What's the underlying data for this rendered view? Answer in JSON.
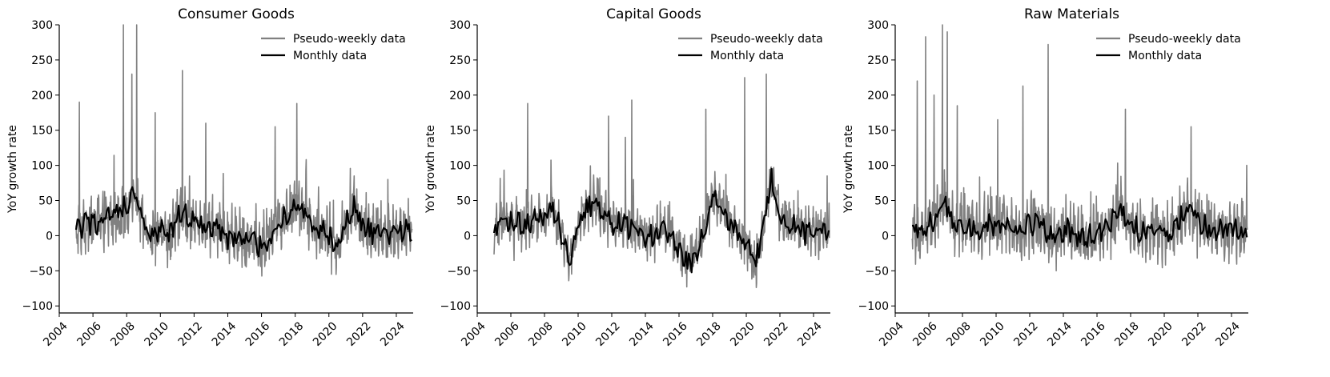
{
  "chart_data": [
    {
      "type": "line",
      "title": "Consumer Goods",
      "xlabel": "",
      "ylabel": "YoY growth rate",
      "xlim": [
        2004,
        2025
      ],
      "ylim": [
        -110,
        300
      ],
      "xticks": [
        2004,
        2006,
        2008,
        2010,
        2012,
        2014,
        2016,
        2018,
        2020,
        2022,
        2024
      ],
      "xtick_labels": [
        "2004",
        "2006",
        "2008",
        "2010",
        "2012",
        "2014",
        "2016",
        "2018",
        "2020",
        "2022",
        "2024"
      ],
      "yticks": [
        -100,
        -50,
        0,
        50,
        100,
        150,
        200,
        250,
        300
      ],
      "ytick_labels": [
        "−100",
        "−50",
        "0",
        "50",
        "100",
        "150",
        "200",
        "250",
        "300"
      ],
      "legend": [
        "Pseudo-weekly data",
        "Monthly data"
      ],
      "legend_position": "top-right",
      "monthly_anchors": {
        "x": [
          2005.0,
          2005.5,
          2006.0,
          2006.5,
          2007.0,
          2007.5,
          2008.0,
          2008.5,
          2009.0,
          2009.5,
          2010.0,
          2010.5,
          2011.0,
          2011.5,
          2012.0,
          2012.5,
          2013.0,
          2013.5,
          2014.0,
          2014.5,
          2015.0,
          2015.5,
          2016.0,
          2016.5,
          2017.0,
          2017.5,
          2018.0,
          2018.5,
          2019.0,
          2019.5,
          2020.0,
          2020.5,
          2021.0,
          2021.5,
          2022.0,
          2022.5,
          2023.0,
          2023.5,
          2024.0,
          2024.5,
          2024.9
        ],
        "y": [
          5,
          15,
          20,
          15,
          25,
          30,
          40,
          55,
          20,
          0,
          5,
          -5,
          25,
          30,
          20,
          10,
          15,
          10,
          -5,
          0,
          -10,
          -5,
          -15,
          -5,
          20,
          25,
          45,
          35,
          10,
          5,
          -5,
          -15,
          15,
          40,
          10,
          5,
          5,
          0,
          10,
          5,
          10
        ]
      },
      "weekly_spread": 28,
      "spikes": [
        [
          2005.2,
          190
        ],
        [
          2007.8,
          300
        ],
        [
          2008.6,
          300
        ],
        [
          2008.3,
          230
        ],
        [
          2011.3,
          235
        ],
        [
          2009.7,
          175
        ],
        [
          2012.7,
          160
        ],
        [
          2018.1,
          188
        ],
        [
          2016.8,
          155
        ],
        [
          2021.5,
          85
        ],
        [
          2023.5,
          80
        ]
      ],
      "series": [
        {
          "name": "Pseudo-weekly data",
          "color": "#808080"
        },
        {
          "name": "Monthly data",
          "color": "#000000"
        }
      ]
    },
    {
      "type": "line",
      "title": "Capital Goods",
      "xlabel": "",
      "ylabel": "YoY growth rate",
      "xlim": [
        2004,
        2025
      ],
      "ylim": [
        -110,
        300
      ],
      "xticks": [
        2004,
        2006,
        2008,
        2010,
        2012,
        2014,
        2016,
        2018,
        2020,
        2022,
        2024
      ],
      "xtick_labels": [
        "2004",
        "2006",
        "2008",
        "2010",
        "2012",
        "2014",
        "2016",
        "2018",
        "2020",
        "2022",
        "2024"
      ],
      "yticks": [
        -100,
        -50,
        0,
        50,
        100,
        150,
        200,
        250,
        300
      ],
      "ytick_labels": [
        "−100",
        "−50",
        "0",
        "50",
        "100",
        "150",
        "200",
        "250",
        "300"
      ],
      "legend": [
        "Pseudo-weekly data",
        "Monthly data"
      ],
      "legend_position": "top-right",
      "monthly_anchors": {
        "x": [
          2005.0,
          2005.5,
          2006.0,
          2006.5,
          2007.0,
          2007.5,
          2008.0,
          2008.5,
          2009.0,
          2009.5,
          2010.0,
          2010.5,
          2011.0,
          2011.5,
          2012.0,
          2012.5,
          2013.0,
          2013.5,
          2014.0,
          2014.5,
          2015.0,
          2015.5,
          2016.0,
          2016.5,
          2017.0,
          2017.5,
          2018.0,
          2018.5,
          2019.0,
          2019.5,
          2020.0,
          2020.5,
          2021.0,
          2021.5,
          2022.0,
          2022.5,
          2023.0,
          2023.5,
          2024.0,
          2024.5,
          2024.9
        ],
        "y": [
          0,
          25,
          20,
          15,
          15,
          20,
          25,
          40,
          5,
          -40,
          10,
          40,
          50,
          30,
          15,
          20,
          10,
          10,
          0,
          5,
          10,
          5,
          -25,
          -40,
          -30,
          10,
          60,
          40,
          20,
          5,
          -10,
          -45,
          10,
          85,
          25,
          20,
          10,
          5,
          10,
          5,
          5
        ],
        "unused": null
      },
      "weekly_spread": 24,
      "spikes": [
        [
          2007.0,
          188
        ],
        [
          2013.2,
          193
        ],
        [
          2011.8,
          170
        ],
        [
          2017.6,
          180
        ],
        [
          2019.9,
          225
        ],
        [
          2021.2,
          230
        ],
        [
          2024.8,
          85
        ],
        [
          2012.8,
          140
        ]
      ],
      "series": [
        {
          "name": "Pseudo-weekly data",
          "color": "#808080"
        },
        {
          "name": "Monthly data",
          "color": "#000000"
        }
      ]
    },
    {
      "type": "line",
      "title": "Raw Materials",
      "xlabel": "",
      "ylabel": "YoY growth rate",
      "xlim": [
        2004,
        2025
      ],
      "ylim": [
        -110,
        300
      ],
      "xticks": [
        2004,
        2006,
        2008,
        2010,
        2012,
        2014,
        2016,
        2018,
        2020,
        2022,
        2024
      ],
      "xtick_labels": [
        "2004",
        "2006",
        "2008",
        "2010",
        "2012",
        "2014",
        "2016",
        "2018",
        "2020",
        "2022",
        "2024"
      ],
      "yticks": [
        -100,
        -50,
        0,
        50,
        100,
        150,
        200,
        250,
        300
      ],
      "ytick_labels": [
        "−100",
        "−50",
        "0",
        "50",
        "100",
        "150",
        "200",
        "250",
        "300"
      ],
      "legend": [
        "Pseudo-weekly data",
        "Monthly data"
      ],
      "legend_position": "top-right",
      "monthly_anchors": {
        "x": [
          2005.0,
          2005.5,
          2006.0,
          2006.5,
          2007.0,
          2007.5,
          2008.0,
          2008.5,
          2009.0,
          2009.5,
          2010.0,
          2010.5,
          2011.0,
          2011.5,
          2012.0,
          2012.5,
          2013.0,
          2013.5,
          2014.0,
          2014.5,
          2015.0,
          2015.5,
          2016.0,
          2016.5,
          2017.0,
          2017.5,
          2018.0,
          2018.5,
          2019.0,
          2019.5,
          2020.0,
          2020.5,
          2021.0,
          2021.5,
          2022.0,
          2022.5,
          2023.0,
          2023.5,
          2024.0,
          2024.5,
          2024.9
        ],
        "y": [
          10,
          0,
          20,
          30,
          50,
          10,
          15,
          10,
          5,
          20,
          10,
          15,
          10,
          5,
          20,
          15,
          5,
          0,
          10,
          5,
          0,
          -5,
          5,
          10,
          20,
          40,
          15,
          10,
          5,
          10,
          5,
          10,
          25,
          40,
          20,
          10,
          5,
          5,
          10,
          5,
          5
        ]
      },
      "weekly_spread": 30,
      "spikes": [
        [
          2005.3,
          220
        ],
        [
          2005.8,
          283
        ],
        [
          2006.8,
          300
        ],
        [
          2007.1,
          290
        ],
        [
          2007.7,
          185
        ],
        [
          2006.3,
          200
        ],
        [
          2011.6,
          213
        ],
        [
          2013.1,
          272
        ],
        [
          2010.1,
          165
        ],
        [
          2017.7,
          180
        ],
        [
          2021.6,
          155
        ],
        [
          2024.9,
          100
        ]
      ],
      "series": [
        {
          "name": "Pseudo-weekly data",
          "color": "#808080"
        },
        {
          "name": "Monthly data",
          "color": "#000000"
        }
      ]
    }
  ]
}
